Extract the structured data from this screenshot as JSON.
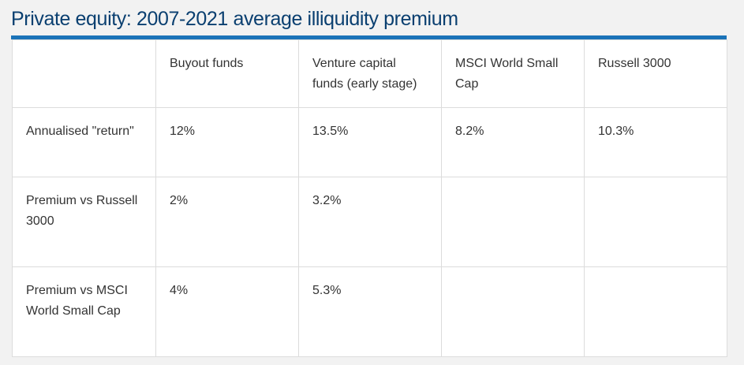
{
  "title": "Private equity: 2007-2021 average illiquidity premium",
  "colors": {
    "title": "#0a3f70",
    "accent_rule": "#1b73b8",
    "text": "#333333",
    "border": "#dcdcdc",
    "background": "#f2f2f2"
  },
  "table": {
    "headers": [
      "",
      "Buyout funds",
      "Venture capital funds (early stage)",
      "MSCI World Small Cap",
      "Russell 3000"
    ],
    "rows": [
      [
        "Annualised \"return\"",
        "12%",
        "13.5%",
        "8.2%",
        "10.3%"
      ],
      [
        "Premium vs Russell 3000",
        "2%",
        "3.2%",
        "",
        ""
      ],
      [
        "Premium vs MSCI World Small Cap",
        "4%",
        "5.3%",
        "",
        ""
      ]
    ]
  }
}
